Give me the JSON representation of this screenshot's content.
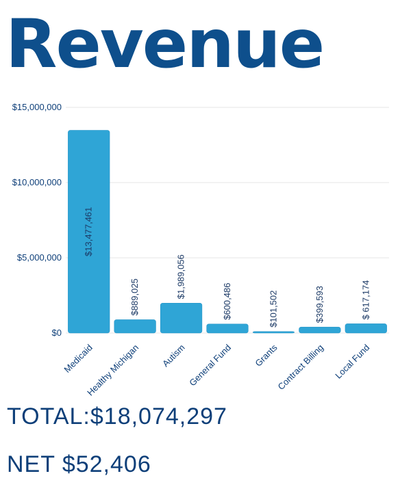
{
  "title": "Revenue",
  "total_label": "TOTAL:$18,074,297",
  "net_label": "NET $52,406",
  "colors": {
    "bar": "#2fa5d6",
    "title": "#0e4f8c",
    "text": "#0e3f79",
    "grid": "#e6e6e6"
  },
  "chart_data": {
    "type": "bar",
    "categories": [
      "Medicaid",
      "Healthy Michigan",
      "Autism",
      "General Fund",
      "Grants",
      "Contract Billing",
      "Local Fund"
    ],
    "values": [
      13477461,
      889025,
      1989056,
      600486,
      101502,
      399593,
      617174
    ],
    "data_labels": [
      "$13,477,461",
      "$889,025",
      "$1,989,056",
      "$600,486",
      "$101,502",
      "$399,593",
      "$ 617,174"
    ],
    "y_ticks": [
      0,
      5000000,
      10000000,
      15000000
    ],
    "y_tick_labels": [
      "$0",
      "$5,000,000",
      "$10,000,000",
      "$15,000,000"
    ],
    "ylim": [
      0,
      15000000
    ],
    "grid": true,
    "title": "",
    "xlabel": "",
    "ylabel": ""
  }
}
